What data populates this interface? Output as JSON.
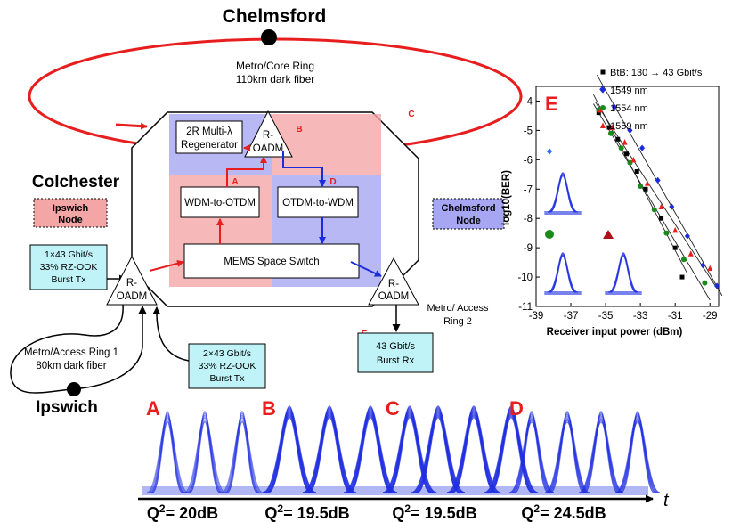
{
  "colors": {
    "red": "#e81e1e",
    "blue": "#1c2bd8",
    "pink_fill": "#f4a6a6",
    "lavender_fill": "#a6a6f2",
    "cyan_fill": "#bff3f7",
    "eye_blue": "#2030e0"
  },
  "cities": {
    "chelmsford": "Chelmsford",
    "colchester": "Colchester",
    "ipswich": "Ipswich"
  },
  "rings": {
    "metro_core": {
      "line1": "Metro/Core Ring",
      "line2": "110km dark fiber"
    },
    "metro_access_1": {
      "line1": "Metro/Access Ring 1",
      "line2": "80km dark fiber"
    },
    "metro_access_2": {
      "line1": "Metro/ Access",
      "line2": "Ring 2"
    }
  },
  "nodes": {
    "ipswich": {
      "line1": "Ipswich",
      "line2": "Node"
    },
    "chelmsford": {
      "line1": "Chelmsford",
      "line2": "Node"
    }
  },
  "blocks": {
    "regenerator": {
      "line1": "2R Multi-λ",
      "line2": "Regenerator"
    },
    "roadm": {
      "line1": "R-",
      "line2": "OADM"
    },
    "wdm_to_otdm": "WDM-to-OTDM",
    "otdm_to_wdm": "OTDM-to-WDM",
    "mems": "MEMS Space Switch"
  },
  "tx_rx": {
    "tx1": {
      "line1": "1×43 Gbit/s",
      "line2": "33% RZ-OOK",
      "line3": "Burst Tx"
    },
    "tx2": {
      "line1": "2×43 Gbit/s",
      "line2": "33% RZ-OOK",
      "line3": "Burst Tx"
    },
    "rx": {
      "line1": "43 Gbit/s",
      "line2": "Burst Rx"
    }
  },
  "point_labels": {
    "a": "A",
    "b": "B",
    "c": "C",
    "d": "D",
    "e": "E"
  },
  "chart_data": {
    "type": "scatter",
    "panel_label": "E",
    "xlabel": "Receiver input power (dBm)",
    "ylabel": "log10(BER)",
    "xlim": [
      -39,
      -28.5
    ],
    "ylim": [
      -11,
      -3.5
    ],
    "x_ticks": [
      "-39",
      "-37",
      "-35",
      "-33",
      "-31",
      "-29"
    ],
    "y_ticks": [
      "-4",
      "-5",
      "-6",
      "-7",
      "-8",
      "-9",
      "-10",
      "-11"
    ],
    "legend_position": "top-right",
    "series": [
      {
        "name": "BtB: 130 → 43 Gbit/s",
        "marker": "square",
        "color": "#000000",
        "points": [
          [
            -35.4,
            -4.4
          ],
          [
            -34.8,
            -4.9
          ],
          [
            -34.3,
            -5.3
          ],
          [
            -33.8,
            -5.8
          ],
          [
            -33.2,
            -6.4
          ],
          [
            -32.7,
            -7.0
          ],
          [
            -31.8,
            -8.0
          ],
          [
            -31.0,
            -9.0
          ],
          [
            -30.6,
            -10.0
          ]
        ]
      },
      {
        "name": "1549 nm",
        "marker": "diamond",
        "color": "#1c2bd8",
        "points": [
          [
            -35.2,
            -3.6
          ],
          [
            -34.5,
            -4.2
          ],
          [
            -33.6,
            -5.0
          ],
          [
            -32.9,
            -5.6
          ],
          [
            -32.0,
            -6.7
          ],
          [
            -31.2,
            -7.6
          ],
          [
            -30.3,
            -8.6
          ],
          [
            -29.4,
            -9.6
          ],
          [
            -28.6,
            -10.3
          ]
        ]
      },
      {
        "name": "1554 nm",
        "marker": "circle",
        "color": "#1a8a1a",
        "points": [
          [
            -35.4,
            -4.3
          ],
          [
            -34.7,
            -5.1
          ],
          [
            -34.1,
            -5.6
          ],
          [
            -33.6,
            -6.1
          ],
          [
            -33.0,
            -6.9
          ],
          [
            -32.2,
            -7.7
          ],
          [
            -31.5,
            -8.5
          ],
          [
            -30.5,
            -9.4
          ],
          [
            -29.3,
            -10.2
          ]
        ]
      },
      {
        "name": "1559 nm",
        "marker": "triangle",
        "color": "#e81e1e",
        "points": [
          [
            -35.3,
            -4.3
          ],
          [
            -34.6,
            -4.9
          ],
          [
            -33.9,
            -5.4
          ],
          [
            -33.4,
            -6.0
          ],
          [
            -32.6,
            -6.8
          ],
          [
            -31.8,
            -7.6
          ],
          [
            -31.0,
            -8.4
          ],
          [
            -30.1,
            -9.2
          ],
          [
            -29.0,
            -9.7
          ]
        ]
      }
    ]
  },
  "eye_diagrams": {
    "labels": [
      "A",
      "B",
      "C",
      "D"
    ],
    "q_values": [
      "20dB",
      "19.5dB",
      "19.5dB",
      "24.5dB"
    ],
    "q_prefix": "Q",
    "q_sup": "2",
    "time_axis": "t"
  }
}
